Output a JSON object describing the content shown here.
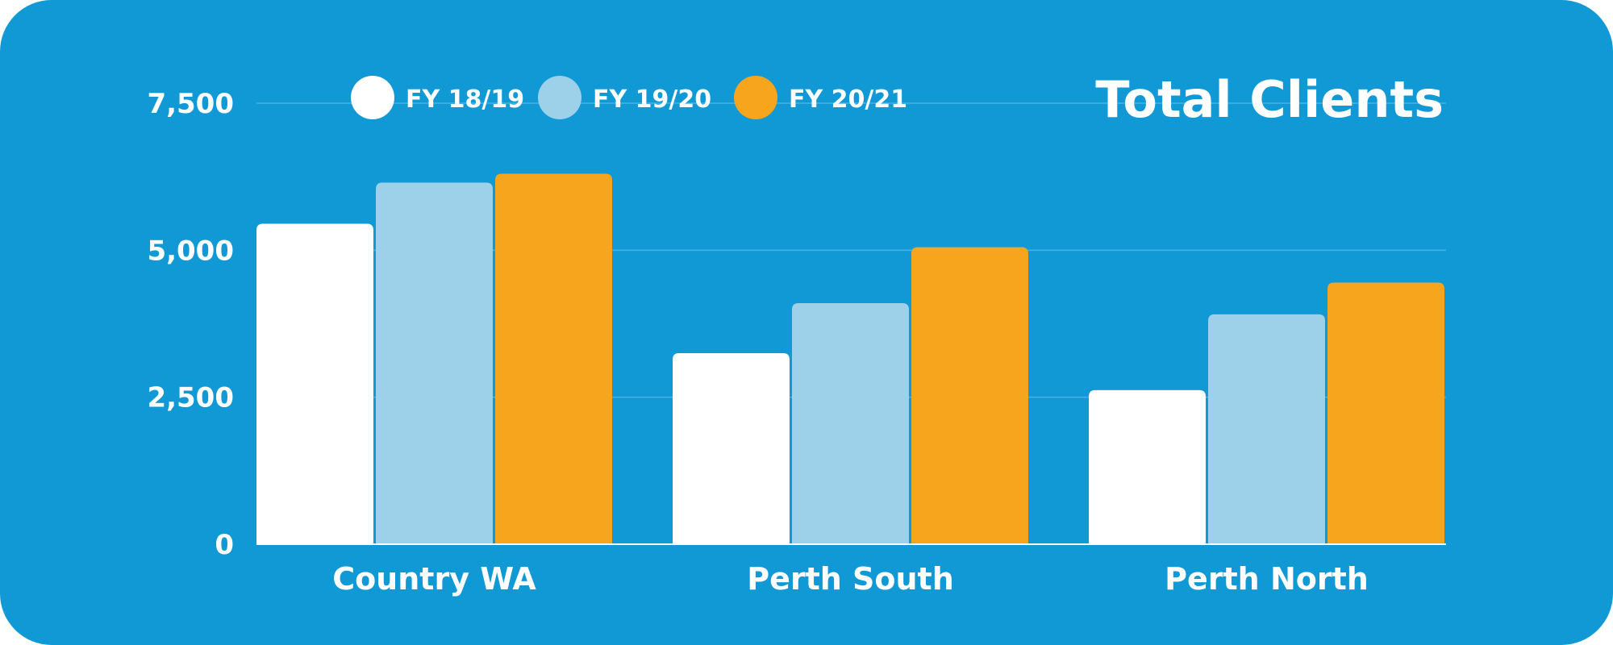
{
  "chart_data": {
    "type": "bar",
    "title": "Total Clients",
    "categories": [
      "Country WA",
      "Perth South",
      "Perth North"
    ],
    "series": [
      {
        "name": "FY 18/19",
        "color": "#ffffff",
        "values": [
          5450,
          3250,
          2620
        ]
      },
      {
        "name": "FY 19/20",
        "color": "#9dd1ea",
        "values": [
          6150,
          4100,
          3910
        ]
      },
      {
        "name": "FY 20/21",
        "color": "#f7a51c",
        "values": [
          6300,
          5050,
          4450
        ]
      }
    ],
    "yticks": [
      "0",
      "2,500",
      "5,000",
      "7,500"
    ],
    "ytick_values": [
      0,
      2500,
      5000,
      7500
    ],
    "ylim": [
      0,
      7500
    ],
    "grid": true,
    "legend_position": "top",
    "background_color": "#1199d6",
    "grid_color": "#48b4e4"
  }
}
